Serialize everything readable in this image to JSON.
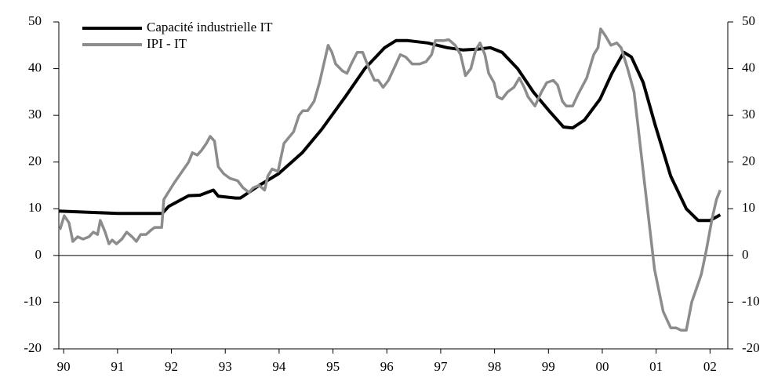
{
  "chart_data": {
    "type": "line",
    "xlim": [
      1989.91,
      2002.33
    ],
    "xticks": [
      {
        "value": 1990,
        "label": "90"
      },
      {
        "value": 1991,
        "label": "91"
      },
      {
        "value": 1992,
        "label": "92"
      },
      {
        "value": 1993,
        "label": "93"
      },
      {
        "value": 1994,
        "label": "94"
      },
      {
        "value": 1995,
        "label": "95"
      },
      {
        "value": 1996,
        "label": "96"
      },
      {
        "value": 1997,
        "label": "97"
      },
      {
        "value": 1998,
        "label": "98"
      },
      {
        "value": 1999,
        "label": "99"
      },
      {
        "value": 2000,
        "label": "00"
      },
      {
        "value": 2001,
        "label": "01"
      },
      {
        "value": 2002,
        "label": "02"
      }
    ],
    "ylim": [
      -20,
      50
    ],
    "yticks": [
      -20,
      -10,
      0,
      10,
      20,
      30,
      40,
      50
    ],
    "y2lim": [
      -20,
      50
    ],
    "y2ticks": [
      -20,
      -10,
      0,
      10,
      20,
      30,
      40,
      50
    ],
    "legend": "upper left",
    "series": [
      {
        "name": "Capacité industrielle IT",
        "color": "#000000",
        "x": [
          1989.91,
          1991.0,
          1991.83,
          1991.95,
          1992.32,
          1992.53,
          1992.78,
          1992.87,
          1993.19,
          1993.28,
          1993.63,
          1993.99,
          1994.43,
          1994.79,
          1995.23,
          1995.59,
          1995.96,
          1996.17,
          1996.39,
          1996.76,
          1997.12,
          1997.41,
          1997.7,
          1997.92,
          1998.14,
          1998.43,
          1998.72,
          1999.01,
          1999.28,
          1999.45,
          1999.67,
          1999.96,
          2000.18,
          2000.4,
          2000.54,
          2000.76,
          2000.98,
          2001.27,
          2001.56,
          2001.78,
          2002.0,
          2002.19
        ],
        "values": [
          9.5,
          9,
          9,
          10.5,
          12.8,
          12.9,
          14,
          12.7,
          12.3,
          12.3,
          15,
          17.5,
          22,
          27,
          34,
          40,
          44.5,
          46,
          46,
          45.5,
          44.5,
          44,
          44.2,
          44.5,
          43.5,
          40,
          35,
          31,
          27.5,
          27.3,
          29,
          33.5,
          39,
          43.5,
          42.5,
          37,
          28,
          17,
          10,
          7.5,
          7.5,
          8.7
        ]
      },
      {
        "name": "IPI - IT",
        "color": "#8c8c8c",
        "x": [
          1989.93,
          1990.01,
          1990.1,
          1990.17,
          1990.26,
          1990.36,
          1990.47,
          1990.55,
          1990.63,
          1990.68,
          1990.77,
          1990.84,
          1990.9,
          1990.98,
          1991.08,
          1991.17,
          1991.27,
          1991.35,
          1991.43,
          1991.53,
          1991.63,
          1991.69,
          1991.82,
          1991.86,
          1992.05,
          1992.2,
          1992.32,
          1992.39,
          1992.48,
          1992.56,
          1992.65,
          1992.72,
          1992.8,
          1992.87,
          1992.97,
          1993.09,
          1993.23,
          1993.33,
          1993.44,
          1993.52,
          1993.63,
          1993.73,
          1993.79,
          1993.87,
          1993.98,
          1994.09,
          1994.27,
          1994.37,
          1994.44,
          1994.53,
          1994.65,
          1994.75,
          1994.91,
          1994.98,
          1995.05,
          1995.18,
          1995.26,
          1995.34,
          1995.45,
          1995.55,
          1995.67,
          1995.77,
          1995.84,
          1995.93,
          1996.03,
          1996.13,
          1996.25,
          1996.35,
          1996.47,
          1996.61,
          1996.73,
          1996.83,
          1996.9,
          1997.05,
          1997.15,
          1997.27,
          1997.37,
          1997.46,
          1997.56,
          1997.65,
          1997.73,
          1997.82,
          1997.89,
          1997.99,
          1998.05,
          1998.14,
          1998.24,
          1998.36,
          1998.46,
          1998.55,
          1998.62,
          1998.75,
          1998.87,
          1998.97,
          1999.09,
          1999.17,
          1999.26,
          1999.33,
          1999.45,
          1999.55,
          1999.71,
          1999.84,
          1999.92,
          1999.97,
          2000.06,
          2000.16,
          2000.27,
          2000.35,
          2000.47,
          2000.59,
          2000.67,
          2000.79,
          2000.89,
          2000.97,
          2001.13,
          2001.27,
          2001.37,
          2001.46,
          2001.56,
          2001.66,
          2001.75,
          2001.84,
          2001.93,
          2002.04,
          2002.12,
          2002.19
        ],
        "values": [
          5.5,
          8.5,
          7,
          3,
          4,
          3.5,
          4,
          5,
          4.5,
          7.5,
          5,
          2.5,
          3.3,
          2.5,
          3.5,
          5,
          4,
          3,
          4.5,
          4.5,
          5.5,
          6,
          6,
          12,
          15.5,
          18,
          20,
          22,
          21.5,
          22.5,
          24,
          25.5,
          24.5,
          19,
          17.5,
          16.5,
          16,
          14.5,
          13.5,
          14.5,
          15,
          14,
          17,
          18.5,
          18,
          24,
          26.5,
          30,
          31,
          31,
          33,
          37,
          45,
          43.5,
          41,
          39.5,
          39,
          41,
          43.5,
          43.5,
          40,
          37.5,
          37.5,
          36,
          37.5,
          40,
          43,
          42.5,
          41,
          41,
          41.5,
          43,
          46,
          46,
          46.2,
          45,
          43,
          38.5,
          40,
          44,
          45.5,
          43,
          39,
          37,
          34,
          33.5,
          35,
          36,
          38,
          36,
          34,
          32,
          35,
          37,
          37.5,
          36.5,
          33,
          32,
          32,
          34.5,
          38,
          43,
          44.5,
          48.5,
          47,
          45,
          45.5,
          44.5,
          40,
          35,
          27,
          15,
          5,
          -3,
          -12,
          -15.5,
          -15.5,
          -16,
          -16,
          -10,
          -7,
          -4,
          1,
          8,
          12,
          14
        ]
      }
    ]
  }
}
